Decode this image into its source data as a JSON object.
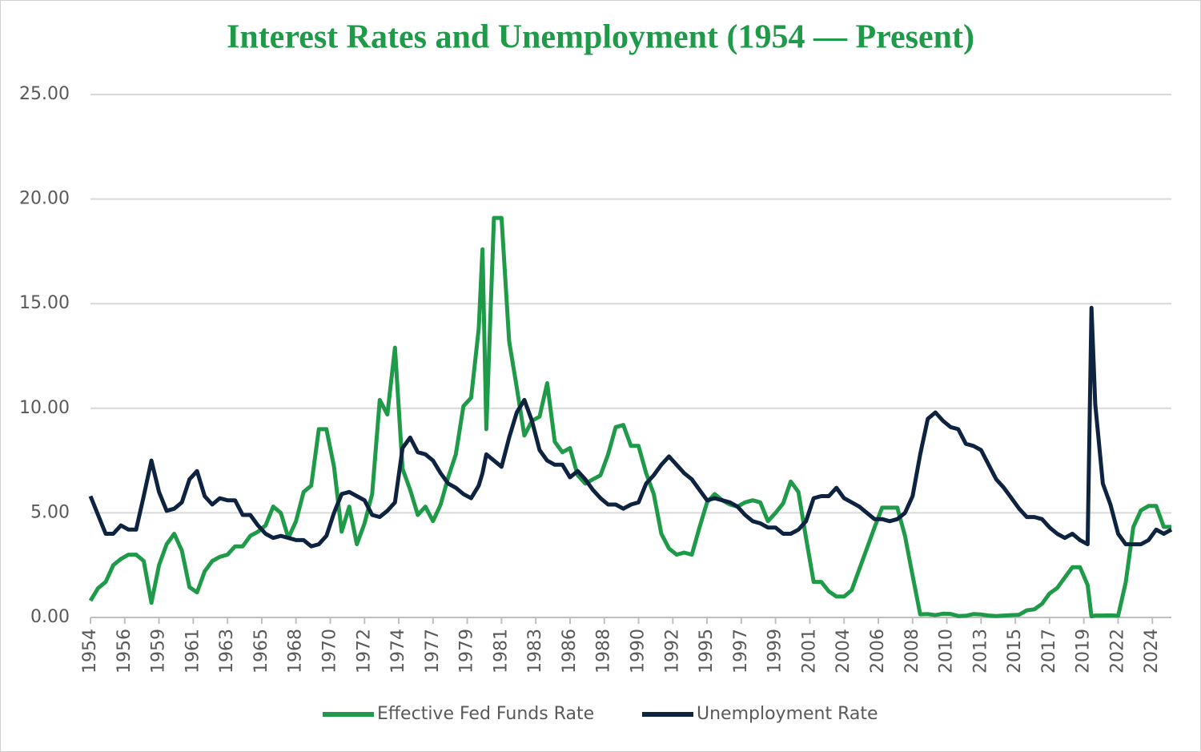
{
  "chart_data": {
    "type": "line",
    "title": "Interest Rates and Unemployment (1954 — Present)",
    "x": [
      1954.5,
      1955,
      1955.5,
      1956,
      1956.5,
      1957,
      1957.5,
      1958,
      1958.5,
      1959,
      1959.5,
      1960,
      1960.5,
      1961,
      1961.5,
      1962,
      1962.5,
      1963,
      1963.5,
      1964,
      1964.5,
      1965,
      1965.5,
      1966,
      1966.5,
      1967,
      1967.5,
      1968,
      1968.5,
      1969,
      1969.5,
      1970,
      1970.5,
      1971,
      1971.5,
      1972,
      1972.5,
      1973,
      1973.5,
      1974,
      1974.5,
      1975,
      1975.5,
      1976,
      1976.5,
      1977,
      1977.5,
      1978,
      1978.5,
      1979,
      1979.5,
      1980,
      1980.25,
      1980.5,
      1981,
      1981.5,
      1982,
      1982.5,
      1983,
      1983.5,
      1984,
      1984.5,
      1985,
      1985.5,
      1986,
      1986.5,
      1987,
      1987.5,
      1988,
      1988.5,
      1989,
      1989.5,
      1990,
      1990.5,
      1991,
      1991.5,
      1992,
      1992.5,
      1993,
      1993.5,
      1994,
      1994.5,
      1995,
      1995.5,
      1996,
      1996.5,
      1997,
      1997.5,
      1998,
      1998.5,
      1999,
      1999.5,
      2000,
      2000.5,
      2001,
      2001.5,
      2002,
      2002.5,
      2003,
      2003.5,
      2004,
      2004.5,
      2005,
      2005.5,
      2006,
      2006.5,
      2007,
      2007.5,
      2008,
      2008.5,
      2009,
      2009.5,
      2010,
      2010.5,
      2011,
      2011.5,
      2012,
      2012.5,
      2013,
      2013.5,
      2014,
      2014.5,
      2015,
      2015.5,
      2016,
      2016.5,
      2017,
      2017.5,
      2018,
      2018.5,
      2019,
      2019.5,
      2020,
      2020.25,
      2020.5,
      2021,
      2021.5,
      2022,
      2022.5,
      2023,
      2023.5,
      2024,
      2024.5,
      2025,
      2025.5
    ],
    "series": [
      {
        "name": "Effective Fed Funds Rate",
        "color": "#1e9a48",
        "values": [
          0.8,
          1.4,
          1.7,
          2.5,
          2.8,
          3.0,
          3.0,
          2.7,
          0.7,
          2.5,
          3.5,
          4.0,
          3.2,
          1.45,
          1.2,
          2.2,
          2.7,
          2.9,
          3.0,
          3.4,
          3.4,
          3.9,
          4.1,
          4.4,
          5.3,
          5.0,
          3.8,
          4.6,
          6.0,
          6.3,
          9.0,
          9.0,
          7.2,
          4.1,
          5.3,
          3.5,
          4.5,
          5.9,
          10.4,
          9.7,
          12.9,
          7.1,
          6.1,
          4.9,
          5.3,
          4.6,
          5.4,
          6.7,
          7.8,
          10.1,
          10.5,
          13.8,
          17.6,
          9.0,
          19.1,
          19.1,
          13.2,
          11.0,
          8.7,
          9.4,
          9.6,
          11.2,
          8.4,
          7.9,
          8.1,
          6.8,
          6.4,
          6.6,
          6.8,
          7.8,
          9.1,
          9.2,
          8.2,
          8.2,
          6.9,
          5.9,
          4.0,
          3.3,
          3.0,
          3.1,
          3.0,
          4.3,
          5.5,
          5.9,
          5.6,
          5.4,
          5.3,
          5.5,
          5.6,
          5.5,
          4.6,
          5.0,
          5.45,
          6.5,
          6.0,
          3.8,
          1.7,
          1.7,
          1.25,
          1.0,
          1.0,
          1.3,
          2.3,
          3.3,
          4.3,
          5.25,
          5.25,
          5.25,
          3.9,
          2.0,
          0.15,
          0.16,
          0.11,
          0.18,
          0.17,
          0.07,
          0.08,
          0.16,
          0.14,
          0.09,
          0.07,
          0.09,
          0.11,
          0.13,
          0.34,
          0.39,
          0.65,
          1.15,
          1.41,
          1.91,
          2.4,
          2.4,
          1.55,
          0.05,
          0.09,
          0.09,
          0.1,
          0.08,
          1.68,
          4.33,
          5.12,
          5.33,
          5.33,
          4.33,
          4.33
        ]
      },
      {
        "name": "Unemployment Rate",
        "color": "#0d2340",
        "values": [
          5.8,
          4.9,
          4.0,
          4.0,
          4.4,
          4.2,
          4.2,
          5.8,
          7.5,
          6.0,
          5.1,
          5.2,
          5.5,
          6.6,
          7.0,
          5.8,
          5.4,
          5.7,
          5.6,
          5.6,
          4.9,
          4.9,
          4.4,
          4.0,
          3.8,
          3.9,
          3.8,
          3.7,
          3.7,
          3.4,
          3.5,
          3.9,
          5.0,
          5.9,
          6.0,
          5.8,
          5.6,
          4.9,
          4.8,
          5.1,
          5.5,
          8.1,
          8.6,
          7.9,
          7.8,
          7.5,
          6.9,
          6.4,
          6.2,
          5.9,
          5.7,
          6.3,
          6.9,
          7.8,
          7.5,
          7.2,
          8.6,
          9.8,
          10.4,
          9.4,
          8.0,
          7.5,
          7.3,
          7.3,
          6.7,
          7.0,
          6.6,
          6.1,
          5.7,
          5.4,
          5.4,
          5.2,
          5.4,
          5.5,
          6.4,
          6.8,
          7.3,
          7.7,
          7.3,
          6.9,
          6.6,
          6.1,
          5.6,
          5.7,
          5.6,
          5.5,
          5.3,
          4.9,
          4.6,
          4.5,
          4.3,
          4.3,
          4.0,
          4.0,
          4.2,
          4.6,
          5.7,
          5.8,
          5.8,
          6.2,
          5.7,
          5.5,
          5.3,
          5.0,
          4.7,
          4.7,
          4.6,
          4.7,
          5.0,
          5.8,
          7.8,
          9.5,
          9.8,
          9.4,
          9.1,
          9.0,
          8.3,
          8.2,
          8.0,
          7.3,
          6.6,
          6.2,
          5.7,
          5.2,
          4.8,
          4.8,
          4.7,
          4.3,
          4.0,
          3.8,
          4.0,
          3.7,
          3.5,
          14.8,
          10.2,
          6.4,
          5.4,
          4.0,
          3.5,
          3.5,
          3.5,
          3.7,
          4.2,
          4.0,
          4.2
        ]
      }
    ],
    "xlim": [
      1954.5,
      2025.5
    ],
    "xticks": [
      {
        "value": 1954.5,
        "label": "1954"
      },
      {
        "value": 1956.75,
        "label": "1956"
      },
      {
        "value": 1959,
        "label": "1959"
      },
      {
        "value": 1961.25,
        "label": "1961"
      },
      {
        "value": 1963.5,
        "label": "1963"
      },
      {
        "value": 1965.75,
        "label": "1965"
      },
      {
        "value": 1968,
        "label": "1968"
      },
      {
        "value": 1970.25,
        "label": "1970"
      },
      {
        "value": 1972.5,
        "label": "1972"
      },
      {
        "value": 1974.75,
        "label": "1974"
      },
      {
        "value": 1977,
        "label": "1977"
      },
      {
        "value": 1979.25,
        "label": "1979"
      },
      {
        "value": 1981.5,
        "label": "1981"
      },
      {
        "value": 1983.75,
        "label": "1983"
      },
      {
        "value": 1986,
        "label": "1986"
      },
      {
        "value": 1988.25,
        "label": "1988"
      },
      {
        "value": 1990.5,
        "label": "1990"
      },
      {
        "value": 1992.75,
        "label": "1992"
      },
      {
        "value": 1995,
        "label": "1995"
      },
      {
        "value": 1997.25,
        "label": "1997"
      },
      {
        "value": 1999.5,
        "label": "1999"
      },
      {
        "value": 2001.75,
        "label": "2001"
      },
      {
        "value": 2004,
        "label": "2004"
      },
      {
        "value": 2006.25,
        "label": "2006"
      },
      {
        "value": 2008.5,
        "label": "2008"
      },
      {
        "value": 2010.75,
        "label": "2010"
      },
      {
        "value": 2013,
        "label": "2013"
      },
      {
        "value": 2015.25,
        "label": "2015"
      },
      {
        "value": 2017.5,
        "label": "2017"
      },
      {
        "value": 2019.75,
        "label": "2019"
      },
      {
        "value": 2022,
        "label": "2022"
      },
      {
        "value": 2024.25,
        "label": "2024"
      }
    ],
    "ylim": [
      0,
      25
    ],
    "yticks": [
      {
        "value": 0,
        "label": "0.00"
      },
      {
        "value": 5,
        "label": "5.00"
      },
      {
        "value": 10,
        "label": "10.00"
      },
      {
        "value": 15,
        "label": "15.00"
      },
      {
        "value": 20,
        "label": "20.00"
      },
      {
        "value": 25,
        "label": "25.00"
      }
    ],
    "grid": true,
    "legend": "bottom"
  }
}
